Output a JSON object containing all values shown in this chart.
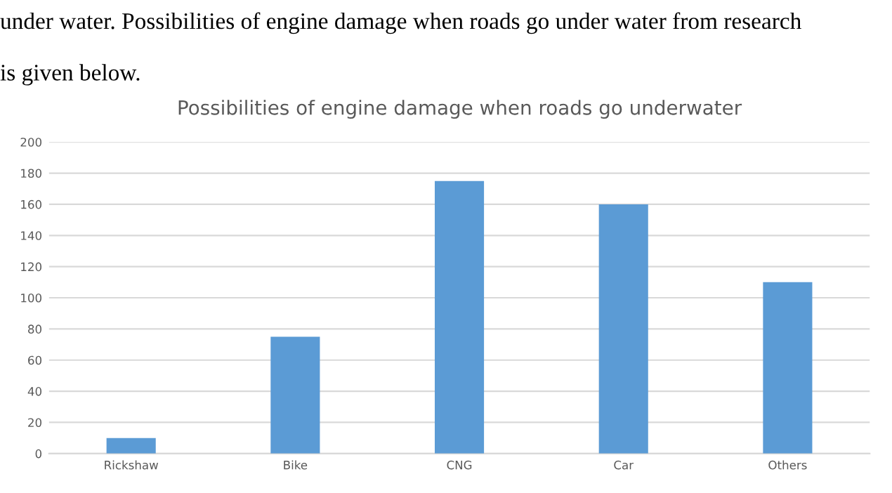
{
  "chart_data": {
    "type": "bar",
    "title": "Possibilities of engine damage when roads go underwater",
    "categories": [
      "Rickshaw",
      "Bike",
      "CNG",
      "Car",
      "Others"
    ],
    "values": [
      10,
      75,
      175,
      160,
      110
    ],
    "color": "#5b9bd5",
    "ylim": [
      0,
      200
    ],
    "yticks": [
      0,
      20,
      40,
      60,
      80,
      100,
      120,
      140,
      160,
      180,
      200
    ],
    "grid": "y",
    "legend": false,
    "annotations": [
      "under water. Possibilities of engine damage when roads go under water from research",
      "is given below."
    ]
  }
}
